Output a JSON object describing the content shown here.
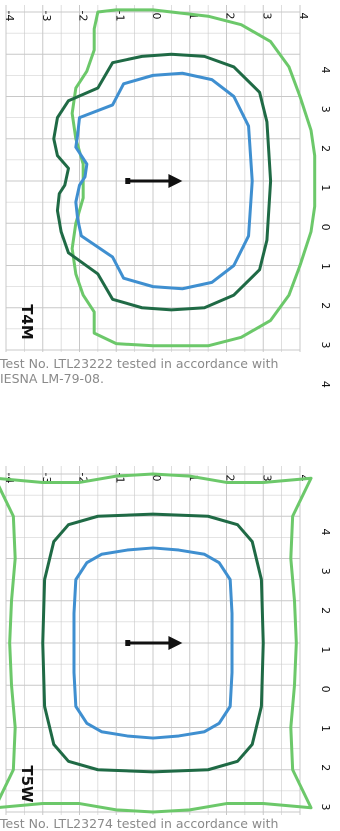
{
  "colors": {
    "grid": "#c8c8c8",
    "inner_contour": "#3f8fd0",
    "middle_contour": "#1f6a45",
    "outer_contour": "#6cc86a",
    "arrow": "#111111",
    "tick_text": "#111111",
    "caption": "#8a8a8a"
  },
  "chart_data": [
    {
      "type": "line",
      "chart_kind": "isofootcandle plot (rotated 90°)",
      "label": "T4M",
      "axis_ticks_vertical": [
        "-4",
        "-3",
        "-2",
        "-1",
        "0",
        "1",
        "2",
        "3",
        "4"
      ],
      "axis_ticks_horizontal": [
        "4",
        "3",
        "2",
        "1",
        "0",
        "1",
        "2",
        "3",
        "4"
      ],
      "grid": true,
      "series": [
        {
          "name": "",
          "color": "#6cc86a",
          "points": [
            [
              -4.0,
              -1.5
            ],
            [
              -3.6,
              -1.6
            ],
            [
              -3.1,
              -1.6
            ],
            [
              -2.6,
              -1.8
            ],
            [
              -2.2,
              -2.1
            ],
            [
              -1.6,
              -2.2
            ],
            [
              -1.0,
              -2.1
            ],
            [
              -0.4,
              -1.9
            ],
            [
              0.4,
              -1.9
            ],
            [
              1.0,
              -2.1
            ],
            [
              1.6,
              -2.2
            ],
            [
              2.2,
              -2.1
            ],
            [
              2.7,
              -1.9
            ],
            [
              3.1,
              -1.6
            ],
            [
              3.6,
              -1.6
            ],
            [
              3.85,
              -1.0
            ],
            [
              3.9,
              0.0
            ],
            [
              3.9,
              1.5
            ],
            [
              3.7,
              2.4
            ],
            [
              3.3,
              3.2
            ],
            [
              2.7,
              3.7
            ],
            [
              2.0,
              4.0
            ],
            [
              1.2,
              4.3
            ],
            [
              0.6,
              4.4
            ],
            [
              0.0,
              4.4
            ],
            [
              -0.6,
              4.4
            ],
            [
              -1.2,
              4.3
            ],
            [
              -2.0,
              4.0
            ],
            [
              -2.7,
              3.7
            ],
            [
              -3.3,
              3.2
            ],
            [
              -3.7,
              2.4
            ],
            [
              -3.9,
              1.5
            ],
            [
              -4.05,
              0.0
            ],
            [
              -4.05,
              -1.0
            ]
          ]
        },
        {
          "name": "",
          "color": "#1f6a45",
          "points": [
            [
              -1.9,
              -2.3
            ],
            [
              -1.5,
              -2.6
            ],
            [
              -1.0,
              -2.7
            ],
            [
              -0.6,
              -2.6
            ],
            [
              -0.3,
              -2.3
            ],
            [
              0.1,
              -2.4
            ],
            [
              0.3,
              -2.55
            ],
            [
              0.7,
              -2.6
            ],
            [
              1.2,
              -2.5
            ],
            [
              1.7,
              -2.3
            ],
            [
              2.2,
              -1.5
            ],
            [
              2.8,
              -1.1
            ],
            [
              3.0,
              -0.3
            ],
            [
              3.05,
              0.5
            ],
            [
              3.0,
              1.4
            ],
            [
              2.7,
              2.2
            ],
            [
              2.1,
              2.9
            ],
            [
              1.4,
              3.1
            ],
            [
              0.0,
              3.2
            ],
            [
              -1.4,
              3.1
            ],
            [
              -2.1,
              2.9
            ],
            [
              -2.7,
              2.2
            ],
            [
              -2.95,
              1.4
            ],
            [
              -3.0,
              0.5
            ],
            [
              -2.95,
              -0.3
            ],
            [
              -2.8,
              -1.1
            ],
            [
              -2.2,
              -1.5
            ]
          ]
        },
        {
          "name": "",
          "color": "#3f8fd0",
          "points": [
            [
              -1.5,
              -2.0
            ],
            [
              -1.1,
              -2.05
            ],
            [
              -0.8,
              -2.1
            ],
            [
              -0.4,
              -1.8
            ],
            [
              -0.1,
              -1.85
            ],
            [
              0.1,
              -2.0
            ],
            [
              0.5,
              -2.1
            ],
            [
              0.9,
              -2.05
            ],
            [
              1.3,
              -1.95
            ],
            [
              1.8,
              -1.1
            ],
            [
              2.3,
              -0.8
            ],
            [
              2.5,
              0.0
            ],
            [
              2.55,
              0.8
            ],
            [
              2.4,
              1.6
            ],
            [
              2.0,
              2.2
            ],
            [
              1.3,
              2.6
            ],
            [
              0.0,
              2.7
            ],
            [
              -1.3,
              2.6
            ],
            [
              -2.0,
              2.2
            ],
            [
              -2.4,
              1.6
            ],
            [
              -2.55,
              0.8
            ],
            [
              -2.5,
              0.0
            ],
            [
              -2.3,
              -0.8
            ],
            [
              -1.8,
              -1.1
            ]
          ]
        }
      ],
      "arrow": {
        "from": [
          0,
          -0.7
        ],
        "to": [
          0,
          0.8
        ]
      },
      "caption_lines": [
        "Test No. LTL23222 tested in accordance with",
        "IESNA LM-79-08."
      ]
    },
    {
      "type": "line",
      "chart_kind": "isofootcandle plot (rotated 90°)",
      "label": "T5W",
      "axis_ticks_vertical": [
        "-4",
        "-3",
        "-2",
        "-1",
        "0",
        "1",
        "2",
        "3",
        "4"
      ],
      "axis_ticks_horizontal": [
        "4",
        "3",
        "2",
        "1",
        "0",
        "1",
        "2",
        "3",
        "4"
      ],
      "grid": true,
      "series": [
        {
          "name": "",
          "color": "#6cc86a",
          "points": [
            [
              -3.9,
              -4.3
            ],
            [
              -3.0,
              -3.8
            ],
            [
              -2.0,
              -3.75
            ],
            [
              -1.0,
              -3.85
            ],
            [
              0.0,
              -3.9
            ],
            [
              1.0,
              -3.85
            ],
            [
              2.0,
              -3.75
            ],
            [
              3.0,
              -3.8
            ],
            [
              3.9,
              -4.3
            ],
            [
              3.8,
              -3.0
            ],
            [
              3.8,
              -2.0
            ],
            [
              3.95,
              -1.0
            ],
            [
              4.0,
              0.0
            ],
            [
              3.95,
              1.0
            ],
            [
              3.8,
              2.0
            ],
            [
              3.8,
              3.0
            ],
            [
              3.9,
              4.3
            ],
            [
              3.0,
              3.8
            ],
            [
              2.0,
              3.75
            ],
            [
              1.0,
              3.85
            ],
            [
              0.0,
              3.9
            ],
            [
              -1.0,
              3.85
            ],
            [
              -2.0,
              3.75
            ],
            [
              -3.0,
              3.8
            ],
            [
              -3.9,
              4.3
            ],
            [
              -3.8,
              3.0
            ],
            [
              -3.8,
              2.0
            ],
            [
              -3.95,
              1.0
            ],
            [
              -4.0,
              0.0
            ],
            [
              -3.95,
              -1.0
            ],
            [
              -3.8,
              -2.0
            ],
            [
              -3.8,
              -3.0
            ]
          ]
        },
        {
          "name": "",
          "color": "#1f6a45",
          "points": [
            [
              -2.4,
              -2.7
            ],
            [
              -1.5,
              -2.95
            ],
            [
              0.0,
              -3.0
            ],
            [
              1.5,
              -2.95
            ],
            [
              2.4,
              -2.7
            ],
            [
              2.8,
              -2.3
            ],
            [
              3.0,
              -1.5
            ],
            [
              3.05,
              0.0
            ],
            [
              3.0,
              1.5
            ],
            [
              2.8,
              2.3
            ],
            [
              2.4,
              2.7
            ],
            [
              1.5,
              2.95
            ],
            [
              0.0,
              3.0
            ],
            [
              -1.5,
              2.95
            ],
            [
              -2.4,
              2.7
            ],
            [
              -2.8,
              2.3
            ],
            [
              -3.0,
              1.5
            ],
            [
              -3.05,
              0.0
            ],
            [
              -3.0,
              -1.5
            ],
            [
              -2.8,
              -2.3
            ]
          ]
        },
        {
          "name": "",
          "color": "#3f8fd0",
          "points": [
            [
              -1.9,
              -1.8
            ],
            [
              -1.5,
              -2.1
            ],
            [
              -0.7,
              -2.15
            ],
            [
              0.0,
              -2.15
            ],
            [
              0.7,
              -2.15
            ],
            [
              1.5,
              -2.1
            ],
            [
              1.9,
              -1.8
            ],
            [
              2.1,
              -1.4
            ],
            [
              2.2,
              -0.7
            ],
            [
              2.25,
              0.0
            ],
            [
              2.2,
              0.7
            ],
            [
              2.1,
              1.4
            ],
            [
              1.9,
              1.8
            ],
            [
              1.5,
              2.1
            ],
            [
              0.7,
              2.15
            ],
            [
              0.0,
              2.15
            ],
            [
              -0.7,
              2.15
            ],
            [
              -1.5,
              2.1
            ],
            [
              -1.9,
              1.8
            ],
            [
              -2.1,
              1.4
            ],
            [
              -2.2,
              0.7
            ],
            [
              -2.25,
              0.0
            ],
            [
              -2.2,
              -0.7
            ],
            [
              -2.1,
              -1.4
            ]
          ]
        }
      ],
      "arrow": {
        "from": [
          0,
          -0.7
        ],
        "to": [
          0,
          0.8
        ]
      },
      "caption_lines": [
        "Test No. LTL23274 tested in accordance with"
      ]
    }
  ]
}
